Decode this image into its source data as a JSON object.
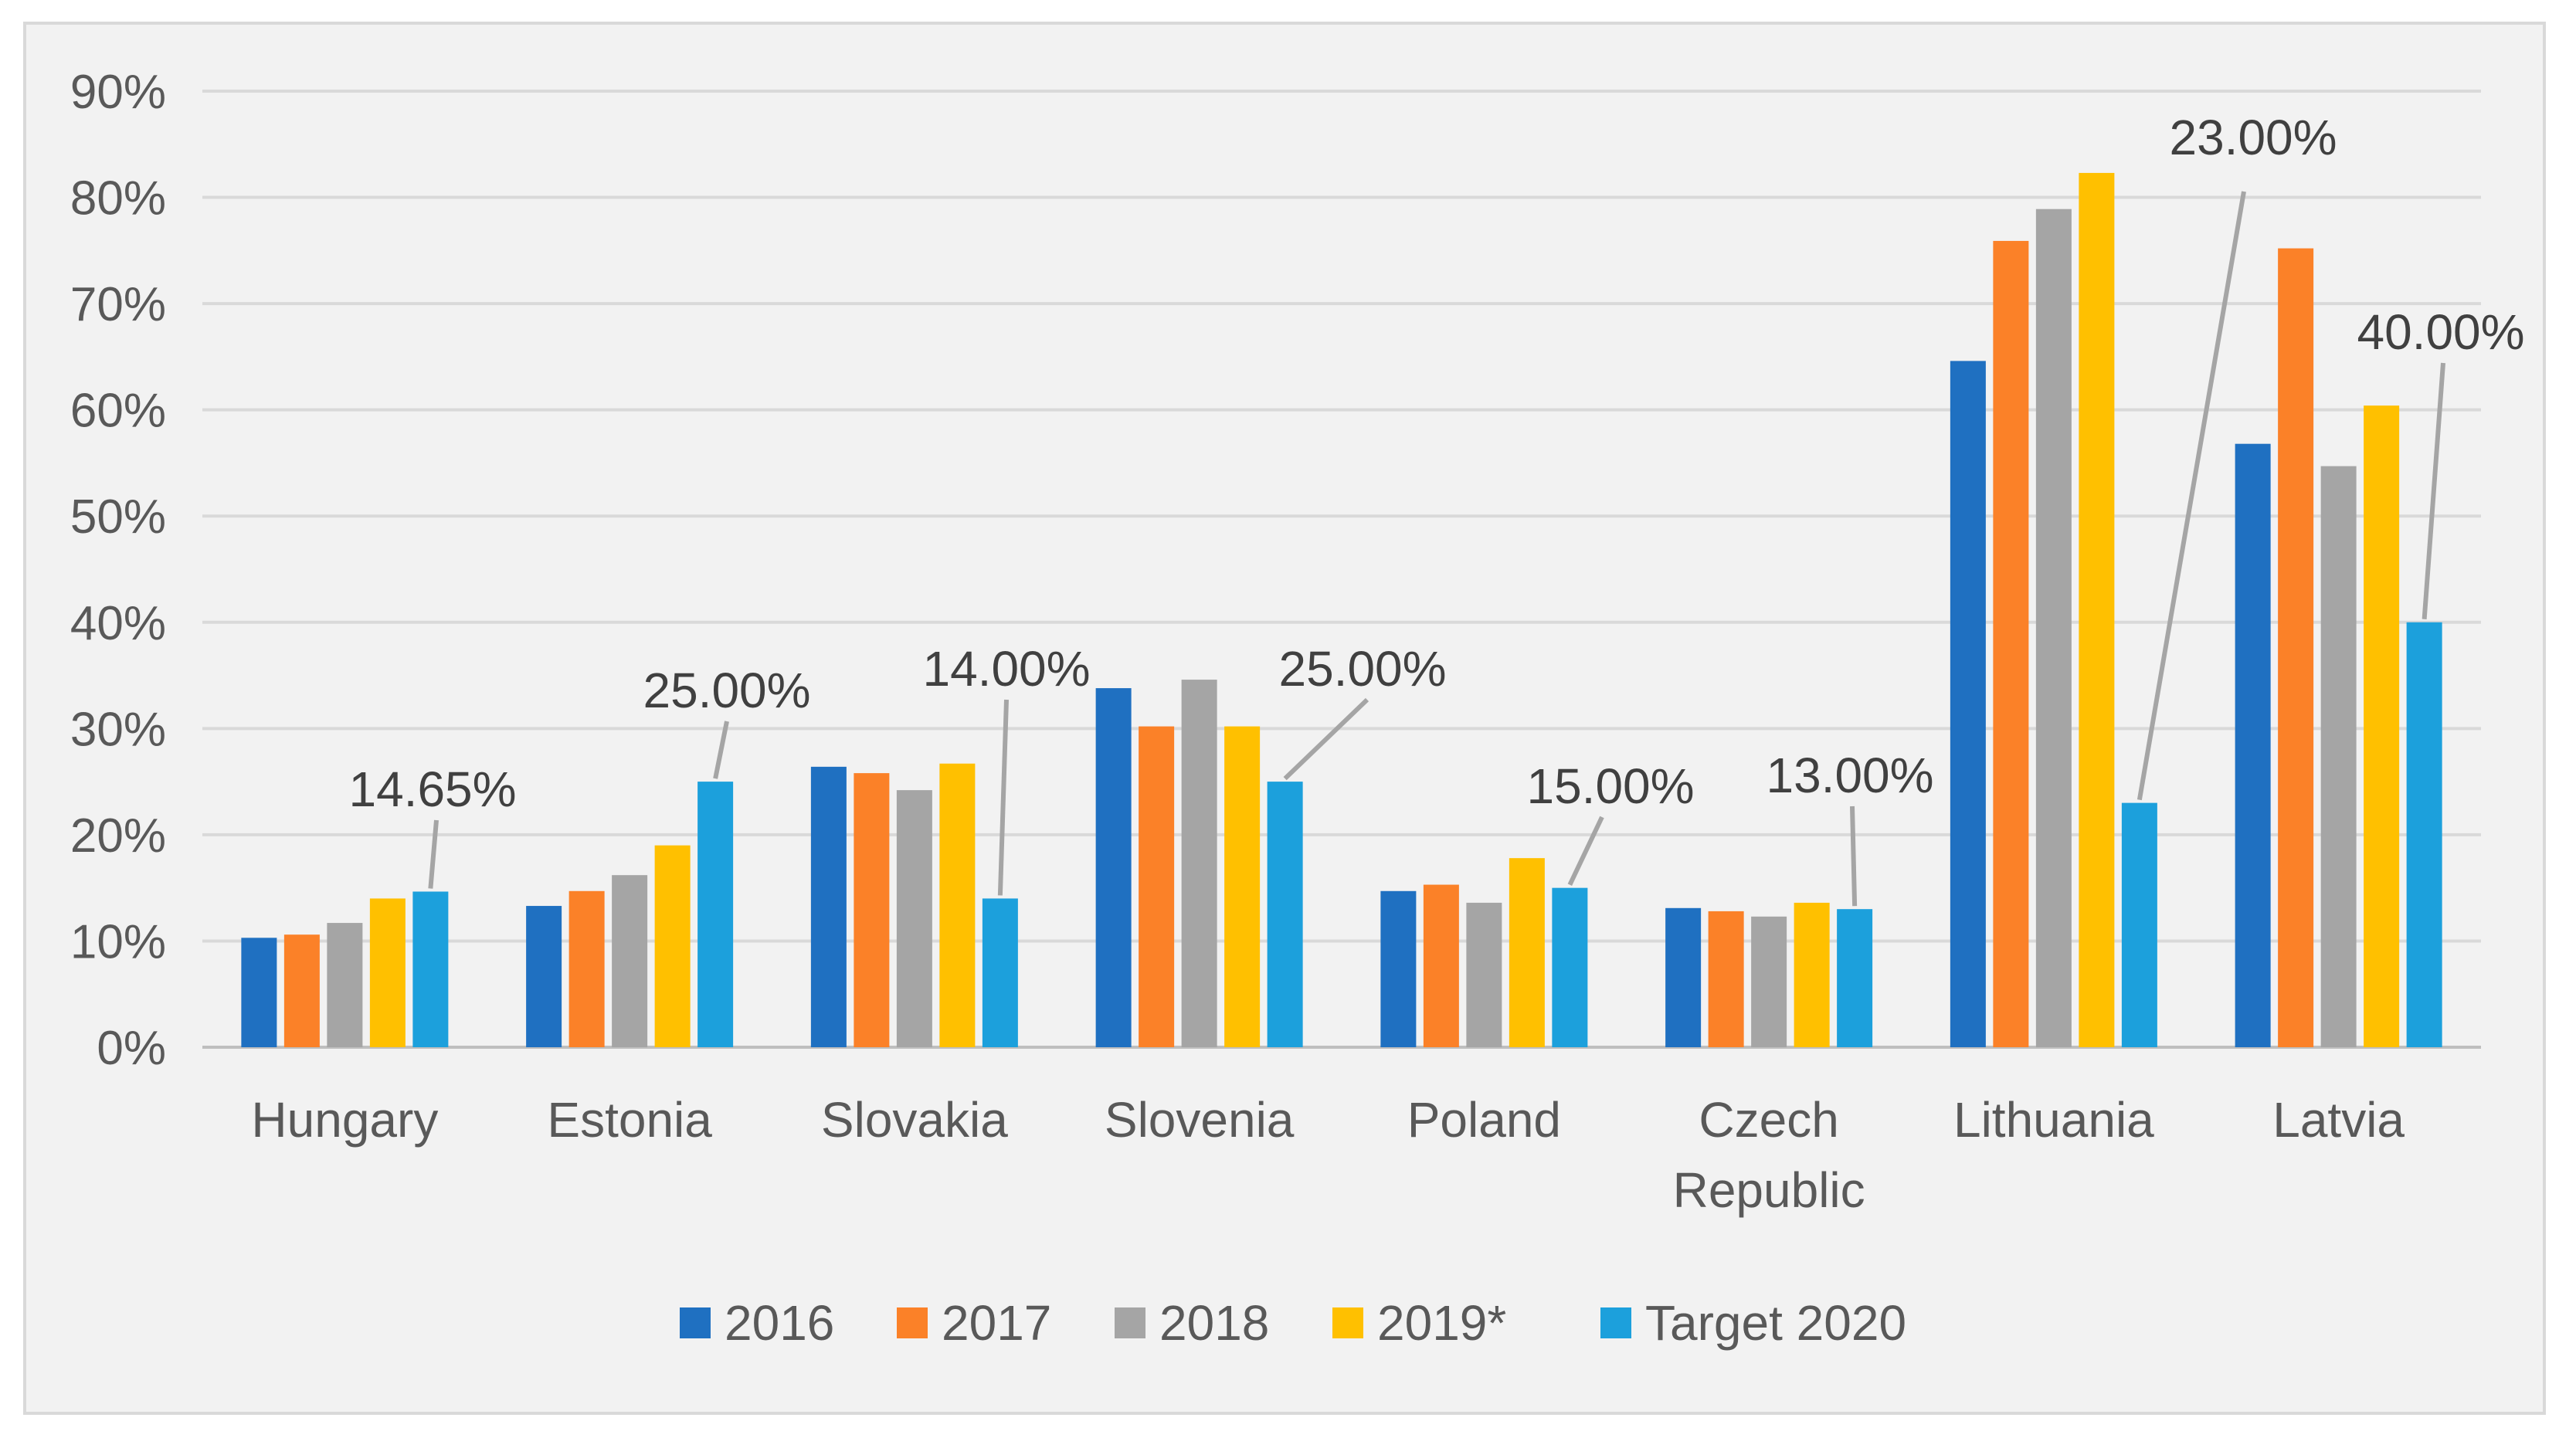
{
  "chart_data": {
    "type": "bar",
    "title": "",
    "xlabel": "",
    "ylabel": "",
    "ylim": [
      0,
      90
    ],
    "y_ticks": [
      0,
      10,
      20,
      30,
      40,
      50,
      60,
      70,
      80,
      90
    ],
    "y_tick_labels": [
      "0%",
      "10%",
      "20%",
      "30%",
      "40%",
      "50%",
      "60%",
      "70%",
      "80%",
      "90%"
    ],
    "grid": true,
    "legend_position": "bottom",
    "categories": [
      [
        "Hungary"
      ],
      [
        "Estonia"
      ],
      [
        "Slovakia"
      ],
      [
        "Slovenia"
      ],
      [
        "Poland"
      ],
      [
        "Czech",
        "Republic"
      ],
      [
        "Lithuania"
      ],
      [
        "Latvia"
      ]
    ],
    "series": [
      {
        "name": "2016",
        "color": "#1f70c1",
        "values": [
          10.3,
          13.3,
          26.4,
          33.8,
          14.7,
          13.1,
          64.6,
          56.8
        ]
      },
      {
        "name": "2017",
        "color": "#fb8128",
        "values": [
          10.6,
          14.7,
          25.8,
          30.2,
          15.3,
          12.8,
          75.9,
          75.2
        ]
      },
      {
        "name": "2018",
        "color": "#a5a5a5",
        "values": [
          11.7,
          16.2,
          24.2,
          34.6,
          13.6,
          12.3,
          78.9,
          54.7
        ]
      },
      {
        "name": "2019*",
        "color": "#ffc000",
        "values": [
          14.0,
          19.0,
          26.7,
          30.2,
          17.8,
          13.6,
          82.3,
          60.4
        ]
      },
      {
        "name": "Target 2020",
        "color": "#1ca0dc",
        "values": [
          14.65,
          25.0,
          14.0,
          25.0,
          15.0,
          13.0,
          23.0,
          40.0
        ]
      }
    ],
    "data_labels": {
      "series": "Target 2020",
      "labels": [
        "14.65%",
        "25.00%",
        "14.00%",
        "25.00%",
        "15.00%",
        "13.00%",
        "23.00%",
        "40.00%"
      ]
    }
  }
}
